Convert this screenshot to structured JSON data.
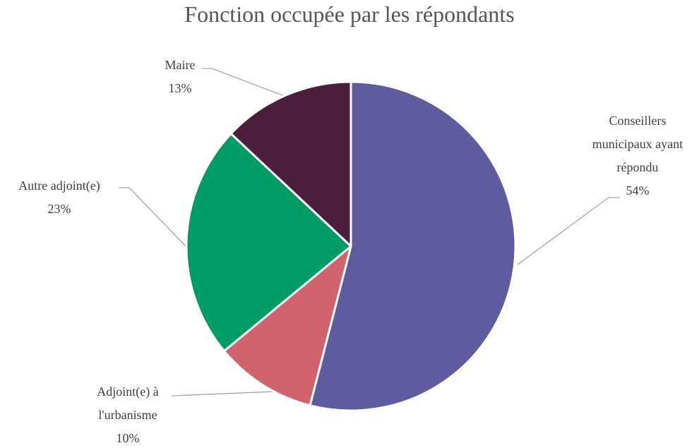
{
  "chart_data": {
    "type": "pie",
    "title": "Fonction occupée par les répondants",
    "categories": [
      "Conseillers municipaux ayant répondu",
      "Adjoint(e) à l'urbanisme",
      "Autre adjoint(e)",
      "Maire"
    ],
    "values": [
      54,
      10,
      23,
      13
    ],
    "value_labels": [
      "54%",
      "10%",
      "23%",
      "13%"
    ],
    "colors": [
      "#5e5b9f",
      "#d0636b",
      "#009c65",
      "#4b1f3c"
    ]
  }
}
